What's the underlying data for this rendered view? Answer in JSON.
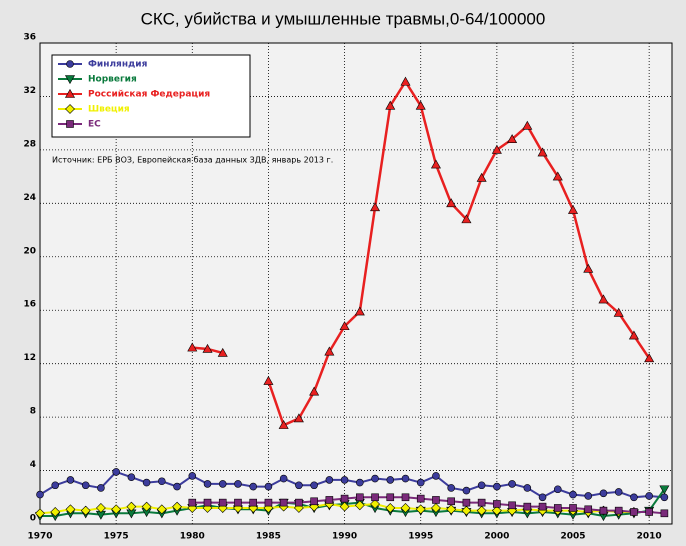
{
  "chart_data": {
    "type": "line",
    "title": "СКС, убийства и умышленные травмы,0-64/100000",
    "annotation": "Источник: ЕРБ ВОЗ, Европейская база данных ЗДВ, январь 2013 г.",
    "x": [
      1970,
      1971,
      1972,
      1973,
      1974,
      1975,
      1976,
      1977,
      1978,
      1979,
      1980,
      1981,
      1982,
      1983,
      1984,
      1985,
      1986,
      1987,
      1988,
      1989,
      1990,
      1991,
      1992,
      1993,
      1994,
      1995,
      1996,
      1997,
      1998,
      1999,
      2000,
      2001,
      2002,
      2003,
      2004,
      2005,
      2006,
      2007,
      2008,
      2009,
      2010,
      2011
    ],
    "xlim": [
      1970,
      2011.5
    ],
    "xticks": [
      1970,
      1975,
      1980,
      1985,
      1990,
      1995,
      2000,
      2005,
      2010
    ],
    "ylim": [
      0,
      36
    ],
    "yticks": [
      0,
      4,
      8,
      12,
      16,
      20,
      24,
      28,
      32,
      36
    ],
    "grid": true,
    "legend": "upper left",
    "series": [
      {
        "name": "Финляндия",
        "color": "#3c3c9c",
        "marker": "circle",
        "values": [
          2.2,
          2.9,
          3.3,
          2.9,
          2.7,
          3.9,
          3.5,
          3.1,
          3.2,
          2.8,
          3.6,
          3.0,
          3.0,
          3.0,
          2.8,
          2.8,
          3.4,
          2.9,
          2.9,
          3.3,
          3.3,
          3.1,
          3.4,
          3.3,
          3.4,
          3.1,
          3.6,
          2.7,
          2.5,
          2.9,
          2.8,
          3.0,
          2.7,
          2.0,
          2.6,
          2.2,
          2.1,
          2.3,
          2.4,
          2.0,
          2.1,
          2.0
        ]
      },
      {
        "name": "Норвегия",
        "color": "#0a7a3c",
        "marker": "triangle-down",
        "values": [
          0.6,
          0.6,
          0.8,
          0.8,
          0.7,
          0.8,
          0.8,
          0.9,
          0.8,
          1.0,
          1.2,
          1.4,
          1.2,
          1.1,
          1.1,
          1.0,
          1.6,
          1.5,
          1.2,
          1.4,
          1.5,
          1.6,
          1.2,
          1.0,
          0.9,
          1.0,
          0.9,
          1.0,
          0.9,
          0.8,
          0.8,
          0.9,
          0.8,
          0.9,
          0.8,
          0.7,
          0.8,
          0.6,
          0.7,
          0.8,
          1.0,
          2.6
        ]
      },
      {
        "name": "Российская Федерация",
        "color": "#e82020",
        "marker": "triangle-up",
        "values": [
          null,
          null,
          null,
          null,
          null,
          null,
          null,
          null,
          null,
          null,
          13.2,
          13.1,
          12.8,
          null,
          null,
          10.7,
          7.4,
          7.9,
          9.9,
          12.9,
          14.8,
          15.9,
          23.7,
          31.3,
          33.1,
          31.3,
          26.9,
          24.0,
          22.8,
          25.9,
          28.0,
          28.8,
          29.8,
          27.8,
          26.0,
          23.5,
          19.1,
          16.8,
          15.8,
          14.1,
          12.4,
          null
        ]
      },
      {
        "name": "Швеция",
        "color": "#f0f000",
        "marker": "diamond",
        "values": [
          0.8,
          0.9,
          1.1,
          1.0,
          1.2,
          1.1,
          1.3,
          1.3,
          1.1,
          1.3,
          1.2,
          1.2,
          1.2,
          1.2,
          1.2,
          1.2,
          1.3,
          1.2,
          1.3,
          1.5,
          1.3,
          1.4,
          1.5,
          1.2,
          1.2,
          1.1,
          1.2,
          1.1,
          1.0,
          1.0,
          1.0,
          1.0,
          1.1,
          1.0,
          1.0,
          1.0,
          0.9,
          1.0,
          0.9,
          0.9,
          0.9,
          null
        ]
      },
      {
        "name": "ЕС",
        "color": "#7a2a7a",
        "marker": "square",
        "values": [
          null,
          null,
          null,
          null,
          null,
          null,
          null,
          null,
          null,
          null,
          1.6,
          1.6,
          1.6,
          1.6,
          1.6,
          1.6,
          1.6,
          1.6,
          1.7,
          1.8,
          1.9,
          2.0,
          2.0,
          2.0,
          2.0,
          1.9,
          1.8,
          1.7,
          1.6,
          1.6,
          1.5,
          1.4,
          1.3,
          1.3,
          1.2,
          1.2,
          1.1,
          1.0,
          1.0,
          0.9,
          0.9,
          0.8
        ]
      }
    ]
  }
}
